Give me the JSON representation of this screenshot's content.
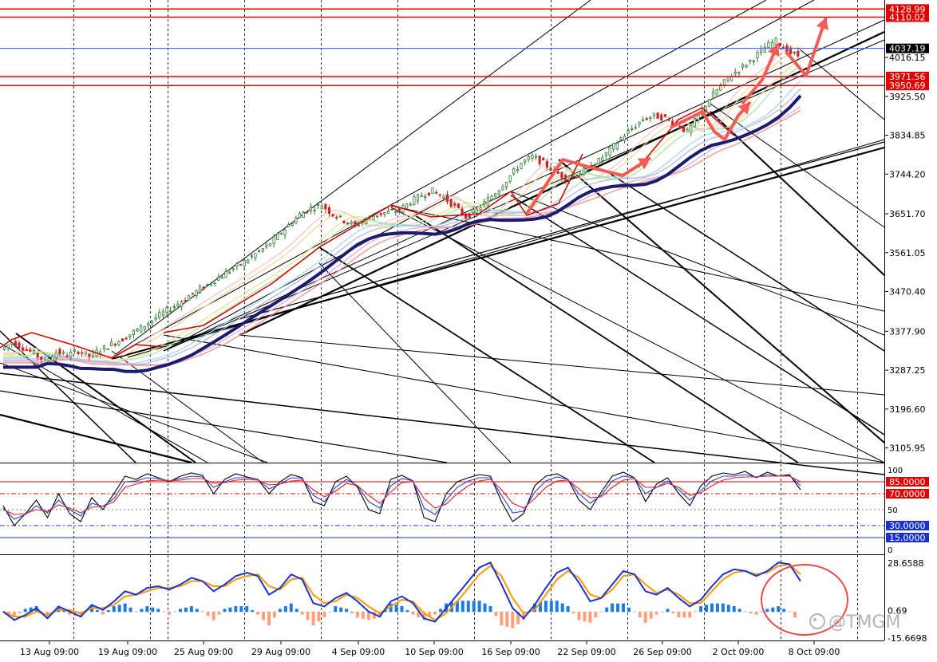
{
  "watermark": "@TMGM",
  "colors": {
    "background": "#ffffff",
    "candle_up": "#2e7d32",
    "candle_down": "#c62828",
    "resistance_line": "#e00000",
    "current_price_line": "#3355ff",
    "annotation_arrow": "#f25c54",
    "ma_thick": "#1c1c6e",
    "oscillator_fast": "#000000",
    "oscillator_slow": "#2244dd",
    "oscillator_signal": "#e02020",
    "macd_line": "#1a33cc",
    "macd_signal": "#ff9900",
    "hist_positive": "#1e7be0",
    "hist_negative": "#ffa07a",
    "circle": "#e84a4a"
  },
  "chart_data": [
    {
      "type": "line",
      "panel": "price",
      "x_tick_labels": [
        "13 Aug 09:00",
        "19 Aug 09:00",
        "25 Aug 09:00",
        "29 Aug 09:00",
        "4 Sep 09:00",
        "10 Sep 09:00",
        "16 Sep 09:00",
        "22 Sep 09:00",
        "26 Sep 09:00",
        "2 Oct 09:00",
        "8 Oct 09:00"
      ],
      "y_tick_labels": [
        "4016.15",
        "3925.50",
        "3834.85",
        "3744.20",
        "3651.70",
        "3561.05",
        "3470.40",
        "3377.90",
        "3287.25",
        "3196.60",
        "3105.95"
      ],
      "ylim": [
        3075,
        4135
      ],
      "price_labels": [
        {
          "value": 4128.99,
          "text": "4128.99",
          "kind": "resistance"
        },
        {
          "value": 4110.02,
          "text": "4110.02",
          "kind": "resistance"
        },
        {
          "value": 4037.19,
          "text": "4037.19",
          "kind": "current"
        },
        {
          "value": 3971.56,
          "text": "3971.56",
          "kind": "resistance"
        },
        {
          "value": 3950.69,
          "text": "3950.69",
          "kind": "resistance"
        }
      ],
      "series": [
        {
          "values": [
            3335,
            3352,
            3340,
            3326,
            3308,
            3330,
            3322,
            3332,
            3320,
            3335,
            3348,
            3360,
            3376,
            3392,
            3410,
            3426,
            3442,
            3460,
            3476,
            3492,
            3508,
            3524,
            3540,
            3558,
            3576,
            3600,
            3625,
            3650,
            3665,
            3672,
            3650,
            3636,
            3624,
            3640,
            3650,
            3656,
            3660,
            3680,
            3695,
            3705,
            3690,
            3668,
            3645,
            3660,
            3685,
            3710,
            3740,
            3770,
            3785,
            3770,
            3750,
            3735,
            3742,
            3758,
            3775,
            3800,
            3828,
            3850,
            3872,
            3880,
            3875,
            3860,
            3842,
            3880,
            3920,
            3950,
            3975,
            3995,
            4015,
            4040,
            4055,
            4030,
            4020
          ]
        }
      ]
    },
    {
      "type": "line",
      "panel": "oscillator",
      "ylim": [
        0,
        100
      ],
      "y_tick_labels": [
        "100",
        "50",
        "0"
      ],
      "levels": [
        {
          "value": 85,
          "text": "85.0000"
        },
        {
          "value": 70,
          "text": "70.0000"
        },
        {
          "value": 30,
          "text": "30.0000"
        },
        {
          "value": 15,
          "text": "15.0000"
        }
      ],
      "series": [
        {
          "values": [
            55,
            30,
            45,
            62,
            40,
            70,
            45,
            35,
            65,
            50,
            70,
            92,
            88,
            95,
            90,
            85,
            92,
            96,
            93,
            70,
            88,
            95,
            91,
            88,
            70,
            85,
            94,
            90,
            60,
            55,
            85,
            92,
            78,
            50,
            45,
            88,
            93,
            86,
            40,
            35,
            70,
            85,
            90,
            94,
            92,
            60,
            35,
            45,
            80,
            92,
            95,
            88,
            62,
            50,
            72,
            92,
            97,
            90,
            60,
            82,
            90,
            70,
            55,
            80,
            92,
            96,
            94,
            98,
            90,
            97,
            92,
            94,
            75
          ]
        },
        {
          "values": [
            52,
            38,
            44,
            55,
            46,
            62,
            50,
            42,
            58,
            54,
            64,
            85,
            86,
            90,
            89,
            86,
            89,
            92,
            91,
            78,
            85,
            90,
            90,
            88,
            76,
            82,
            90,
            89,
            68,
            60,
            78,
            88,
            80,
            60,
            52,
            80,
            89,
            86,
            52,
            44,
            62,
            78,
            86,
            90,
            90,
            68,
            46,
            48,
            72,
            86,
            91,
            88,
            70,
            58,
            68,
            86,
            92,
            90,
            70,
            78,
            86,
            75,
            62,
            74,
            86,
            92,
            92,
            94,
            91,
            94,
            92,
            93,
            80
          ]
        },
        {
          "values": [
            50,
            44,
            45,
            50,
            48,
            56,
            52,
            46,
            53,
            54,
            60,
            78,
            82,
            86,
            87,
            86,
            87,
            89,
            89,
            83,
            84,
            87,
            88,
            87,
            81,
            82,
            86,
            87,
            75,
            66,
            73,
            83,
            80,
            68,
            58,
            72,
            84,
            85,
            64,
            52,
            57,
            70,
            80,
            86,
            88,
            75,
            58,
            52,
            64,
            78,
            86,
            87,
            76,
            65,
            66,
            78,
            87,
            89,
            78,
            78,
            83,
            78,
            68,
            71,
            80,
            87,
            90,
            91,
            91,
            92,
            92,
            92,
            85
          ]
        }
      ]
    },
    {
      "type": "line",
      "panel": "macd",
      "ylim": [
        -15.6698,
        28.6588
      ],
      "y_tick_labels": [
        "28.6588",
        "0.69",
        "-15.6698"
      ],
      "series": [
        {
          "values": [
            0,
            -5,
            -2,
            2,
            -4,
            3,
            0,
            -3,
            4,
            1,
            6,
            12,
            10,
            14,
            15,
            13,
            16,
            20,
            18,
            12,
            16,
            21,
            23,
            21,
            10,
            14,
            22,
            19,
            5,
            3,
            8,
            11,
            6,
            0,
            -3,
            6,
            9,
            5,
            -4,
            -6,
            2,
            10,
            18,
            26,
            29,
            16,
            2,
            -4,
            4,
            14,
            23,
            26,
            17,
            6,
            8,
            16,
            24,
            22,
            12,
            10,
            14,
            8,
            3,
            7,
            15,
            22,
            25,
            24,
            21,
            24,
            29,
            28,
            18
          ]
        },
        {
          "values": [
            0,
            -3,
            -3,
            0,
            -2,
            1,
            1,
            -1,
            2,
            2,
            4,
            9,
            10,
            12,
            14,
            14,
            15,
            18,
            18,
            15,
            15,
            19,
            21,
            22,
            15,
            13,
            19,
            20,
            10,
            5,
            6,
            10,
            8,
            3,
            -1,
            3,
            7,
            6,
            -1,
            -5,
            -1,
            6,
            14,
            22,
            27,
            21,
            8,
            -1,
            1,
            10,
            19,
            24,
            20,
            10,
            8,
            13,
            21,
            22,
            16,
            11,
            13,
            10,
            5,
            5,
            12,
            19,
            23,
            24,
            22,
            23,
            27,
            28,
            22
          ]
        }
      ]
    }
  ]
}
